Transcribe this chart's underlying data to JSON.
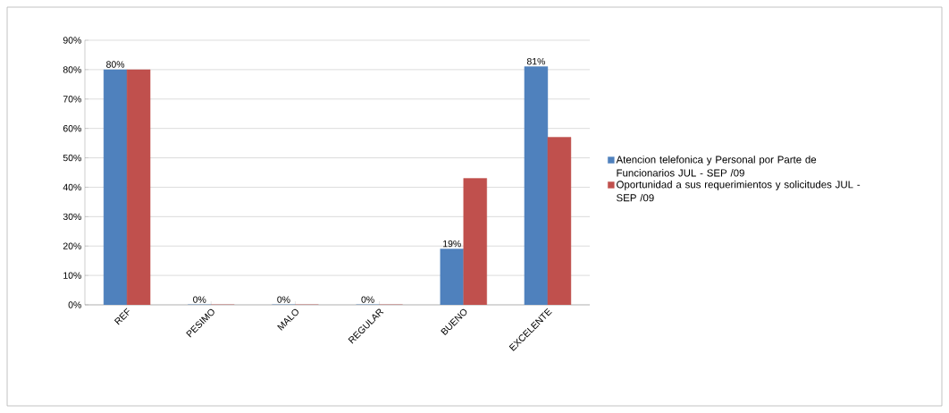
{
  "chart_data": {
    "type": "bar",
    "categories": [
      "REF",
      "PESIMO",
      "MALO",
      "REGULAR",
      "BUENO",
      "EXCELENTE"
    ],
    "series": [
      {
        "name": "Atencion telefonica y Personal por Parte de Funcionarios JUL - SEP /09",
        "color": "#4f81bd",
        "values": [
          80,
          0,
          0,
          0,
          19,
          81
        ],
        "value_labels": [
          "80%",
          "0%",
          "0%",
          "0%",
          "19%",
          "81%"
        ]
      },
      {
        "name": "Oportunidad a sus requerimientos y solicitudes JUL - SEP /09",
        "color": "#c0504d",
        "values": [
          80,
          0,
          0,
          0,
          43,
          57
        ]
      }
    ],
    "ylim": [
      0,
      90
    ],
    "yticks": [
      {
        "value": 0,
        "label": "0%"
      },
      {
        "value": 10,
        "label": "10%"
      },
      {
        "value": 20,
        "label": "20%"
      },
      {
        "value": 30,
        "label": "30%"
      },
      {
        "value": 40,
        "label": "40%"
      },
      {
        "value": 50,
        "label": "50%"
      },
      {
        "value": 60,
        "label": "60%"
      },
      {
        "value": 70,
        "label": "70%"
      },
      {
        "value": 80,
        "label": "80%"
      },
      {
        "value": 90,
        "label": "90%"
      }
    ],
    "grid": "y",
    "legend": "right"
  }
}
